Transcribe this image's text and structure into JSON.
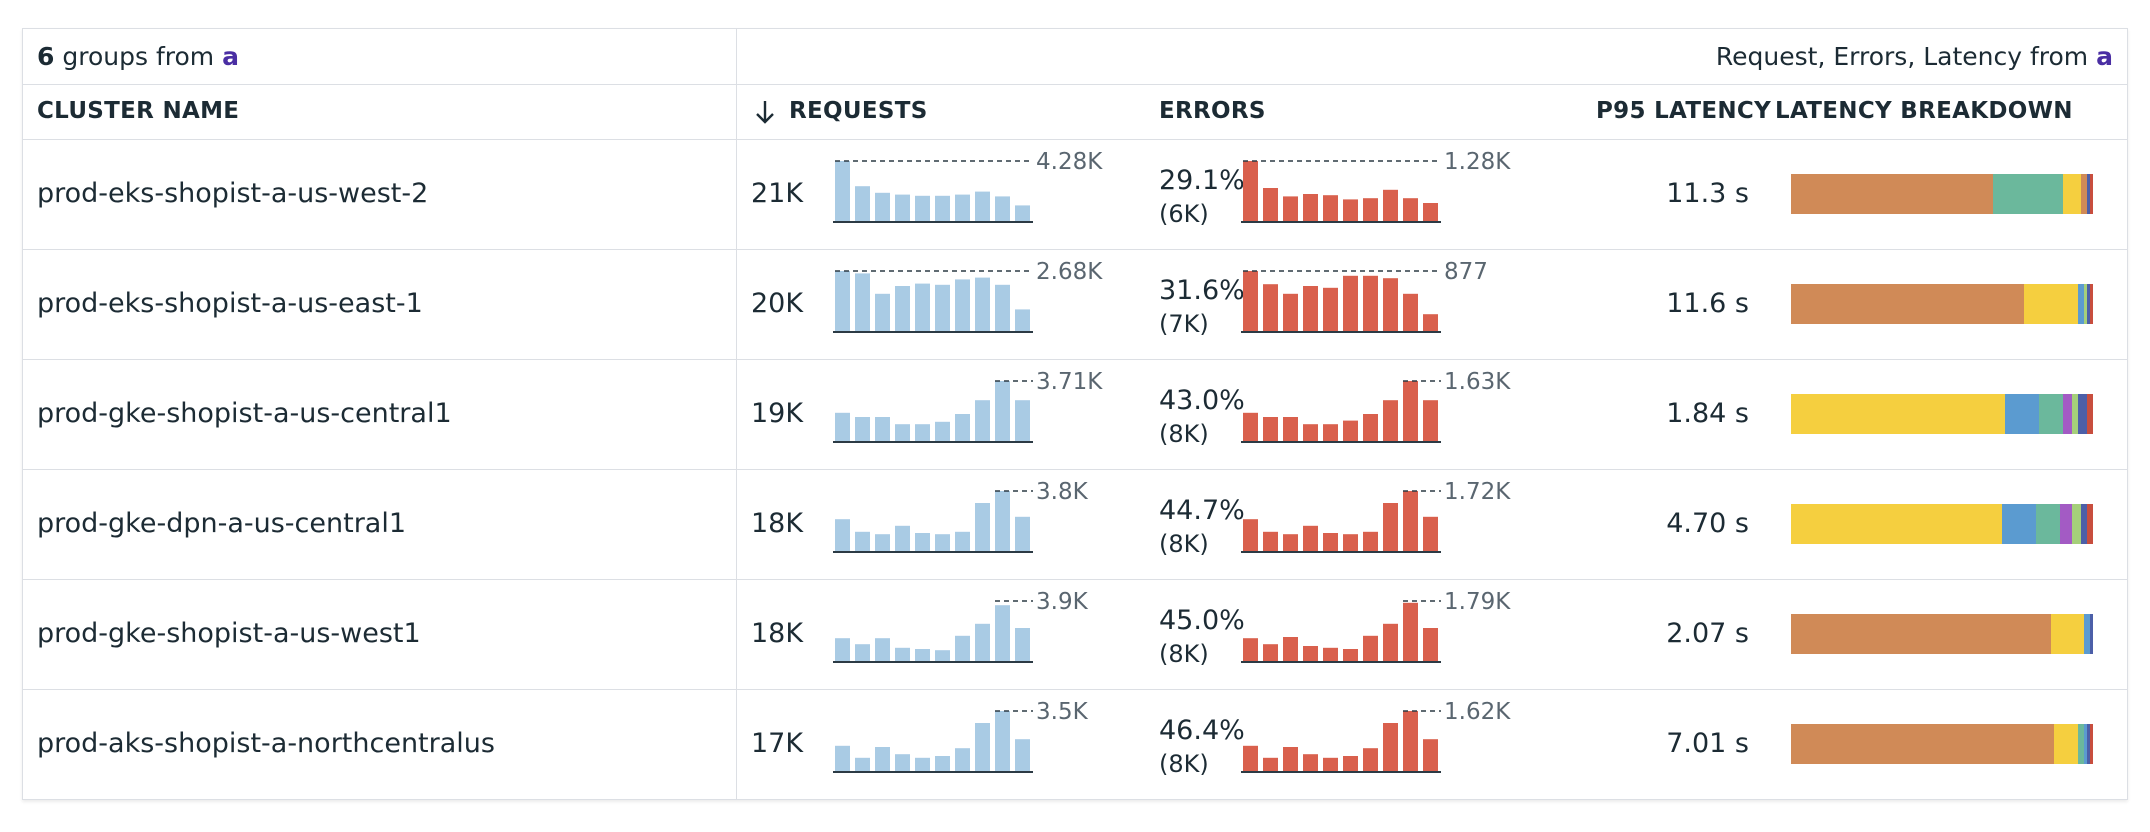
{
  "header": {
    "group_count": "6",
    "group_text": "groups from",
    "query_ref": "a",
    "right_text": "Request, Errors, Latency from",
    "right_ref": "a"
  },
  "columns": {
    "cluster_name": "CLUSTER NAME",
    "requests": "REQUESTS",
    "errors": "ERRORS",
    "p95_latency": "P95 LATENCY",
    "latency_breakdown": "LATENCY BREAKDOWN"
  },
  "colors": {
    "requests_bar": "#a9cbe4",
    "errors_bar": "#d9604d",
    "orange": "#d08a57",
    "teal": "#6bb89c",
    "yellow": "#f5cf3f",
    "blue": "#5b9bd0",
    "purple": "#a35bc4",
    "lightgreen": "#a5cf7a",
    "navy": "#4c5fa8",
    "red": "#c84e3e"
  },
  "rows": [
    {
      "cluster": "prod-eks-shopist-a-us-west-2",
      "requests": "21K",
      "req_max_label": "4.28K",
      "req_series": [
        1.0,
        0.58,
        0.47,
        0.44,
        0.42,
        0.42,
        0.44,
        0.49,
        0.41,
        0.26
      ],
      "error_pct": "29.1%",
      "error_count": "(6K)",
      "err_max_label": "1.28K",
      "err_series": [
        1.0,
        0.55,
        0.41,
        0.45,
        0.43,
        0.36,
        0.38,
        0.52,
        0.38,
        0.3
      ],
      "latency": "11.3 s",
      "breakdown": [
        {
          "color": "orange",
          "value": 0.67
        },
        {
          "color": "teal",
          "value": 0.23
        },
        {
          "color": "yellow",
          "value": 0.06
        },
        {
          "color": "orange",
          "value": 0.02
        },
        {
          "color": "navy",
          "value": 0.01
        },
        {
          "color": "red",
          "value": 0.01
        }
      ]
    },
    {
      "cluster": "prod-eks-shopist-a-us-east-1",
      "requests": "20K",
      "req_max_label": "2.68K",
      "req_series": [
        1.0,
        0.96,
        0.62,
        0.75,
        0.79,
        0.77,
        0.86,
        0.89,
        0.77,
        0.36
      ],
      "error_pct": "31.6%",
      "error_count": "(7K)",
      "err_max_label": "877",
      "err_series": [
        1.0,
        0.78,
        0.62,
        0.75,
        0.72,
        0.92,
        0.92,
        0.88,
        0.62,
        0.28
      ],
      "latency": "11.6 s",
      "breakdown": [
        {
          "color": "orange",
          "value": 0.77
        },
        {
          "color": "yellow",
          "value": 0.18
        },
        {
          "color": "blue",
          "value": 0.02
        },
        {
          "color": "lightgreen",
          "value": 0.01
        },
        {
          "color": "navy",
          "value": 0.01
        },
        {
          "color": "red",
          "value": 0.01
        }
      ]
    },
    {
      "cluster": "prod-gke-shopist-a-us-central1",
      "requests": "19K",
      "req_series": [
        0.47,
        0.4,
        0.4,
        0.28,
        0.28,
        0.32,
        0.45,
        0.68,
        1.0,
        0.68
      ],
      "req_max_label": "3.71K",
      "error_pct": "43.0%",
      "error_count": "(8K)",
      "err_max_label": "1.63K",
      "err_series": [
        0.47,
        0.4,
        0.4,
        0.28,
        0.28,
        0.34,
        0.45,
        0.68,
        1.0,
        0.68
      ],
      "latency": "1.84 s",
      "breakdown": [
        {
          "color": "yellow",
          "value": 0.71
        },
        {
          "color": "blue",
          "value": 0.11
        },
        {
          "color": "teal",
          "value": 0.08
        },
        {
          "color": "purple",
          "value": 0.03
        },
        {
          "color": "lightgreen",
          "value": 0.02
        },
        {
          "color": "navy",
          "value": 0.03
        },
        {
          "color": "red",
          "value": 0.02
        }
      ]
    },
    {
      "cluster": "prod-gke-dpn-a-us-central1",
      "requests": "18K",
      "req_max_label": "3.8K",
      "req_series": [
        0.53,
        0.32,
        0.28,
        0.42,
        0.3,
        0.28,
        0.32,
        0.8,
        1.0,
        0.57
      ],
      "error_pct": "44.7%",
      "error_count": "(8K)",
      "err_max_label": "1.72K",
      "err_series": [
        0.53,
        0.32,
        0.28,
        0.42,
        0.3,
        0.28,
        0.32,
        0.8,
        1.0,
        0.57
      ],
      "latency": "4.70 s",
      "breakdown": [
        {
          "color": "yellow",
          "value": 0.7
        },
        {
          "color": "blue",
          "value": 0.11
        },
        {
          "color": "teal",
          "value": 0.08
        },
        {
          "color": "purple",
          "value": 0.04
        },
        {
          "color": "lightgreen",
          "value": 0.03
        },
        {
          "color": "navy",
          "value": 0.02
        },
        {
          "color": "red",
          "value": 0.02
        }
      ]
    },
    {
      "cluster": "prod-gke-shopist-a-us-west1",
      "requests": "18K",
      "req_max_label": "3.9K",
      "req_series": [
        0.38,
        0.28,
        0.38,
        0.22,
        0.2,
        0.18,
        0.42,
        0.62,
        0.93,
        0.55
      ],
      "error_pct": "45.0%",
      "error_count": "(8K)",
      "err_max_label": "1.79K",
      "err_series": [
        0.38,
        0.28,
        0.4,
        0.25,
        0.22,
        0.2,
        0.42,
        0.62,
        0.97,
        0.55
      ],
      "latency": "2.07 s",
      "breakdown": [
        {
          "color": "orange",
          "value": 0.86
        },
        {
          "color": "yellow",
          "value": 0.11
        },
        {
          "color": "blue",
          "value": 0.02
        },
        {
          "color": "navy",
          "value": 0.01
        }
      ]
    },
    {
      "cluster": "prod-aks-shopist-a-northcentralus",
      "requests": "17K",
      "req_max_label": "3.5K",
      "req_series": [
        0.42,
        0.22,
        0.4,
        0.28,
        0.22,
        0.25,
        0.38,
        0.8,
        1.0,
        0.53
      ],
      "error_pct": "46.4%",
      "error_count": "(8K)",
      "err_max_label": "1.62K",
      "err_series": [
        0.42,
        0.22,
        0.4,
        0.28,
        0.22,
        0.25,
        0.38,
        0.8,
        1.0,
        0.53
      ],
      "latency": "7.01 s",
      "breakdown": [
        {
          "color": "orange",
          "value": 0.87
        },
        {
          "color": "yellow",
          "value": 0.08
        },
        {
          "color": "teal",
          "value": 0.02
        },
        {
          "color": "blue",
          "value": 0.01
        },
        {
          "color": "navy",
          "value": 0.01
        },
        {
          "color": "red",
          "value": 0.01
        }
      ]
    }
  ]
}
